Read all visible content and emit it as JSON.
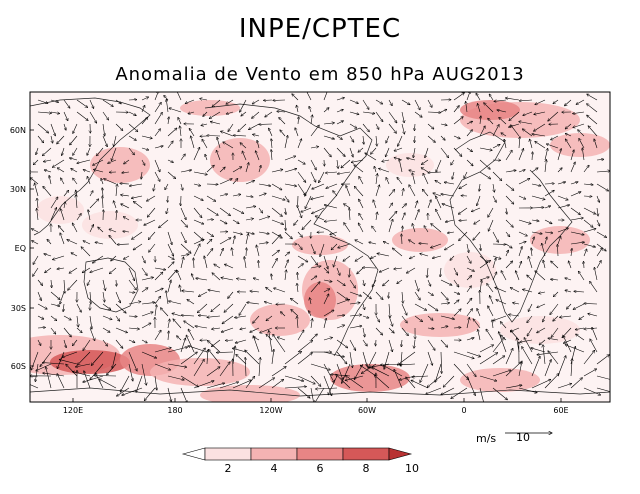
{
  "title": "INPE/CPTEC",
  "subtitle": "Anomalia de Vento em 850 hPa AUG2013",
  "lat_labels": [
    "60N",
    "30N",
    "EQ",
    "30S",
    "60S"
  ],
  "lon_labels": [
    "120E",
    "180",
    "120W",
    "60W",
    "0",
    "60E"
  ],
  "vector_unit": "m/s",
  "vector_ref_value": "10",
  "colorbar": {
    "labels": [
      "2",
      "4",
      "6",
      "8",
      "10"
    ],
    "colors": [
      "#ffffff",
      "#fbe1e1",
      "#f4b3b3",
      "#e88585",
      "#d55858",
      "#b83232"
    ]
  }
}
